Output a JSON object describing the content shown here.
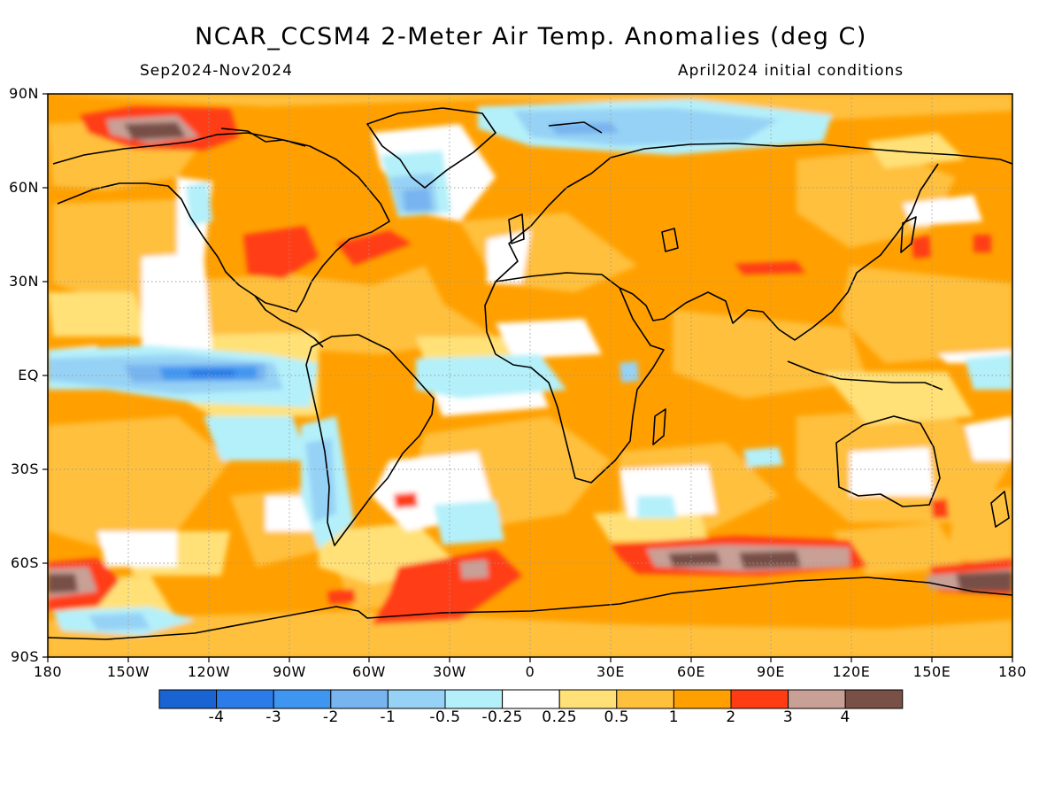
{
  "title": "NCAR_CCSM4 2-Meter Air Temp. Anomalies (deg C)",
  "period": "Sep2024-Nov2024",
  "init": "April2024 initial conditions",
  "lat_labels": [
    "90N",
    "60N",
    "30N",
    "EQ",
    "30S",
    "60S",
    "90S"
  ],
  "lon_labels": [
    "180",
    "150W",
    "120W",
    "90W",
    "60W",
    "30W",
    "0",
    "30E",
    "60E",
    "90E",
    "120E",
    "150E",
    "180"
  ],
  "colorbar": {
    "colors": [
      "#1964d2",
      "#2b7ce8",
      "#3f96f0",
      "#78b4f0",
      "#96d2f5",
      "#b4f0fa",
      "#ffffff",
      "#ffe178",
      "#ffc03c",
      "#ffa000",
      "#ff3c14",
      "#c8a096",
      "#785046"
    ],
    "labels": [
      "-4",
      "-3",
      "-2",
      "-1",
      "-0.5",
      "-0.25",
      "0.25",
      "0.5",
      "1",
      "2",
      "3",
      "4"
    ]
  },
  "map": {
    "projection": "equirectangular",
    "lat_range": [
      -90,
      90
    ],
    "lon_range": [
      -180,
      180
    ],
    "background_anomaly_class": "1 to 2",
    "gridlines": "dotted every 30 degrees"
  }
}
